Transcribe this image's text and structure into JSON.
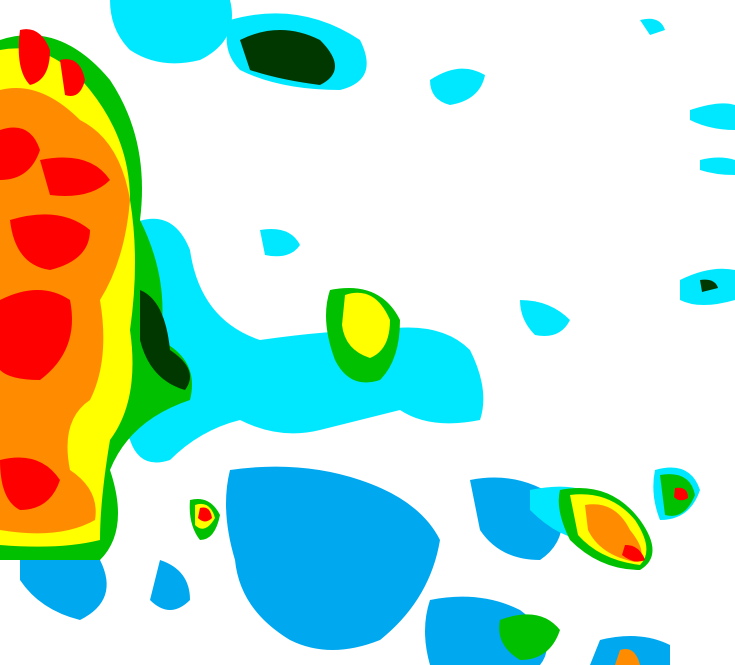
{
  "map": {
    "kind": "weather-radar-reflectivity",
    "palette": {
      "background": "#ffffff",
      "light_blue": "#00a8f0",
      "cyan": "#00e8ff",
      "green": "#00c000",
      "dark_green": "#003800",
      "light_green": "#80ff00",
      "yellow": "#ffff00",
      "orange": "#ff8c00",
      "red": "#ff0000"
    }
  }
}
